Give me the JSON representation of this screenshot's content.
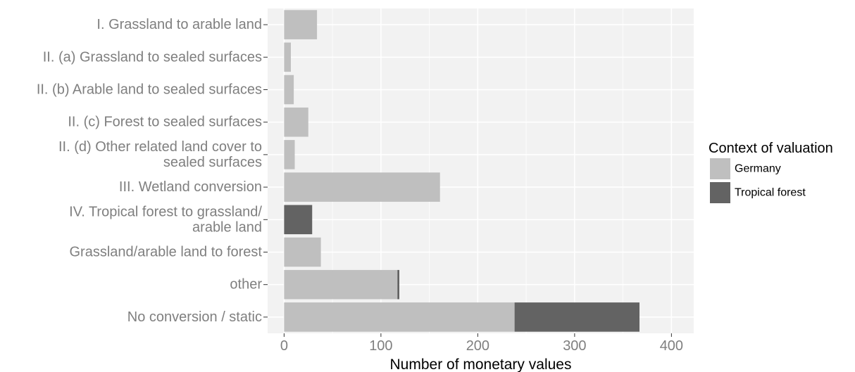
{
  "chart_data": {
    "type": "bar",
    "orientation": "horizontal",
    "stacked": true,
    "categories": [
      [
        "I. Grassland to arable land"
      ],
      [
        "II. (a) Grassland to sealed surfaces"
      ],
      [
        "II. (b) Arable land to sealed surfaces"
      ],
      [
        "II. (c) Forest to sealed surfaces"
      ],
      [
        "II. (d) Other related land cover to",
        "sealed surfaces"
      ],
      [
        "III. Wetland conversion"
      ],
      [
        "IV. Tropical forest to grassland/",
        "arable land"
      ],
      [
        "Grassland/arable land to forest"
      ],
      [
        "other"
      ],
      [
        "No conversion / static"
      ]
    ],
    "series": [
      {
        "name": "Germany",
        "color": "#bfbfbf",
        "values": [
          34,
          7,
          10,
          25,
          11,
          161,
          0,
          38,
          117,
          238
        ]
      },
      {
        "name": "Tropical forest",
        "color": "#636363",
        "values": [
          0,
          0,
          0,
          0,
          0,
          0,
          29,
          0,
          2,
          129
        ]
      }
    ],
    "xlabel": "Number of monetary values",
    "ylabel": "",
    "xlim": [
      -17,
      423
    ],
    "xticks": [
      "0",
      "100",
      "200",
      "300",
      "400"
    ],
    "grid": true,
    "panel_background": "#f2f2f2",
    "legend": {
      "title": "Context of valuation",
      "position": "right"
    }
  }
}
